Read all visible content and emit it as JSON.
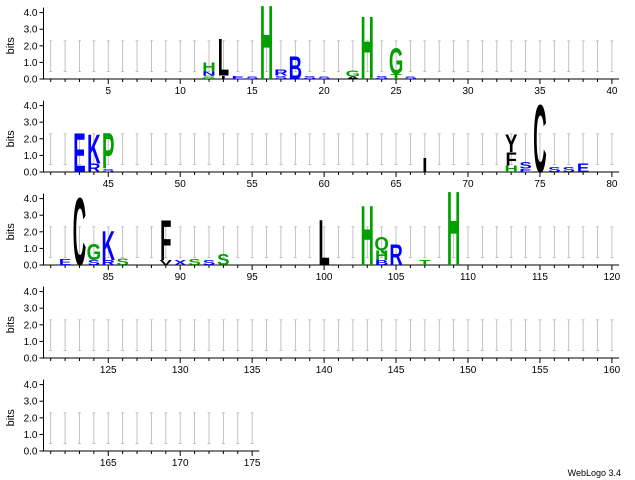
{
  "chart_data": {
    "type": "sequence-logo",
    "ylabel": "bits",
    "ylim": [
      0,
      4.3
    ],
    "yticks": [
      "0.0",
      "1.0",
      "2.0",
      "3.0",
      "4.0"
    ],
    "positions_per_row": 40,
    "total_positions": 175,
    "xtick_labels": [
      5,
      10,
      15,
      20,
      25,
      30,
      35,
      40,
      45,
      50,
      55,
      60,
      65,
      70,
      75,
      80,
      85,
      90,
      95,
      100,
      105,
      110,
      115,
      120,
      125,
      130,
      135,
      140,
      145,
      150,
      155,
      160,
      165,
      170,
      175
    ],
    "error_bars": {
      "lower": 0.45,
      "upper": 2.3
    },
    "color_scheme": {
      "hydrophobic": "#000000",
      "basic": "#0000ff",
      "acidic": "#0000ff",
      "polar": "#00a000",
      "other": "#000000"
    },
    "stacks": [
      {
        "pos": 12,
        "letters": [
          [
            "H",
            0.55,
            "#00a000"
          ],
          [
            "N",
            0.25,
            "#0000ff"
          ],
          [
            "S",
            0.12,
            "#00a000"
          ],
          [
            "G",
            0.08,
            "#00a000"
          ]
        ]
      },
      {
        "pos": 13,
        "letters": [
          [
            "L",
            2.3,
            "#000000"
          ],
          [
            "I",
            0.2,
            "#000000"
          ]
        ]
      },
      {
        "pos": 14,
        "letters": [
          [
            "E",
            0.18,
            "#0000ff"
          ]
        ]
      },
      {
        "pos": 15,
        "letters": [
          [
            "S",
            0.15,
            "#0000ff"
          ]
        ]
      },
      {
        "pos": 16,
        "letters": [
          [
            "H",
            4.6,
            "#00a000"
          ]
        ]
      },
      {
        "pos": 17,
        "letters": [
          [
            "R",
            0.35,
            "#0000ff"
          ],
          [
            "S",
            0.2,
            "#0000ff"
          ]
        ]
      },
      {
        "pos": 18,
        "letters": [
          [
            "B",
            1.4,
            "#0000ff"
          ]
        ]
      },
      {
        "pos": 19,
        "letters": [
          [
            "S",
            0.2,
            "#0000ff"
          ]
        ]
      },
      {
        "pos": 20,
        "letters": [
          [
            "S",
            0.15,
            "#0000ff"
          ]
        ]
      },
      {
        "pos": 22,
        "letters": [
          [
            "G",
            0.35,
            "#00a000"
          ],
          [
            "A",
            0.15,
            "#000000"
          ]
        ]
      },
      {
        "pos": 23,
        "letters": [
          [
            "H",
            3.9,
            "#00a000"
          ]
        ]
      },
      {
        "pos": 24,
        "letters": [
          [
            "S",
            0.2,
            "#0000ff"
          ]
        ]
      },
      {
        "pos": 25,
        "letters": [
          [
            "G",
            1.6,
            "#00a000"
          ],
          [
            "T",
            0.3,
            "#00a000"
          ]
        ]
      },
      {
        "pos": 26,
        "letters": [
          [
            "S",
            0.15,
            "#0000ff"
          ]
        ]
      },
      {
        "pos": 43,
        "letters": [
          [
            "E",
            2.4,
            "#0000ff"
          ]
        ]
      },
      {
        "pos": 44,
        "letters": [
          [
            "K",
            1.8,
            "#0000ff"
          ],
          [
            "R",
            0.5,
            "#0000ff"
          ]
        ]
      },
      {
        "pos": 45,
        "letters": [
          [
            "P",
            2.2,
            "#00a000"
          ],
          [
            "S",
            0.2,
            "#0000ff"
          ]
        ]
      },
      {
        "pos": 67,
        "letters": [
          [
            "I",
            0.9,
            "#000000"
          ]
        ]
      },
      {
        "pos": 73,
        "letters": [
          [
            "Y",
            1.1,
            "#000000"
          ],
          [
            "F",
            0.8,
            "#000000"
          ],
          [
            "H",
            0.4,
            "#00a000"
          ]
        ]
      },
      {
        "pos": 74,
        "letters": [
          [
            "S",
            0.4,
            "#0000ff"
          ],
          [
            "E",
            0.2,
            "#0000ff"
          ]
        ]
      },
      {
        "pos": 75,
        "letters": [
          [
            "C",
            4.2,
            "#000000"
          ]
        ]
      },
      {
        "pos": 76,
        "letters": [
          [
            "S",
            0.3,
            "#0000ff"
          ]
        ]
      },
      {
        "pos": 77,
        "letters": [
          [
            "S",
            0.3,
            "#0000ff"
          ]
        ]
      },
      {
        "pos": 78,
        "letters": [
          [
            "E",
            0.5,
            "#0000ff"
          ]
        ]
      },
      {
        "pos": 82,
        "letters": [
          [
            "E",
            0.35,
            "#0000ff"
          ]
        ]
      },
      {
        "pos": 83,
        "letters": [
          [
            "C",
            4.2,
            "#000000"
          ]
        ]
      },
      {
        "pos": 84,
        "letters": [
          [
            "G",
            1.0,
            "#00a000"
          ],
          [
            "S",
            0.3,
            "#0000ff"
          ]
        ]
      },
      {
        "pos": 85,
        "letters": [
          [
            "K",
            1.8,
            "#0000ff"
          ],
          [
            "R",
            0.3,
            "#0000ff"
          ]
        ]
      },
      {
        "pos": 86,
        "letters": [
          [
            "S",
            0.4,
            "#00a000"
          ]
        ]
      },
      {
        "pos": 89,
        "letters": [
          [
            "F",
            2.5,
            "#000000"
          ],
          [
            "V",
            0.3,
            "#000000"
          ]
        ]
      },
      {
        "pos": 90,
        "letters": [
          [
            "X",
            0.3,
            "#0000ff"
          ]
        ]
      },
      {
        "pos": 91,
        "letters": [
          [
            "S",
            0.35,
            "#00a000"
          ]
        ]
      },
      {
        "pos": 92,
        "letters": [
          [
            "S",
            0.3,
            "#0000ff"
          ]
        ]
      },
      {
        "pos": 93,
        "letters": [
          [
            "S",
            0.7,
            "#00a000"
          ]
        ]
      },
      {
        "pos": 100,
        "letters": [
          [
            "L",
            2.8,
            "#000000"
          ]
        ]
      },
      {
        "pos": 103,
        "letters": [
          [
            "H",
            3.7,
            "#00a000"
          ]
        ]
      },
      {
        "pos": 104,
        "letters": [
          [
            "Q",
            0.8,
            "#00a000"
          ],
          [
            "H",
            0.6,
            "#00a000"
          ],
          [
            "B",
            0.3,
            "#0000ff"
          ]
        ]
      },
      {
        "pos": 105,
        "letters": [
          [
            "R",
            1.3,
            "#0000ff"
          ]
        ]
      },
      {
        "pos": 107,
        "letters": [
          [
            "T",
            0.3,
            "#00a000"
          ]
        ]
      },
      {
        "pos": 109,
        "letters": [
          [
            "H",
            4.6,
            "#00a000"
          ]
        ]
      }
    ],
    "footer": "WebLogo 3.4"
  }
}
